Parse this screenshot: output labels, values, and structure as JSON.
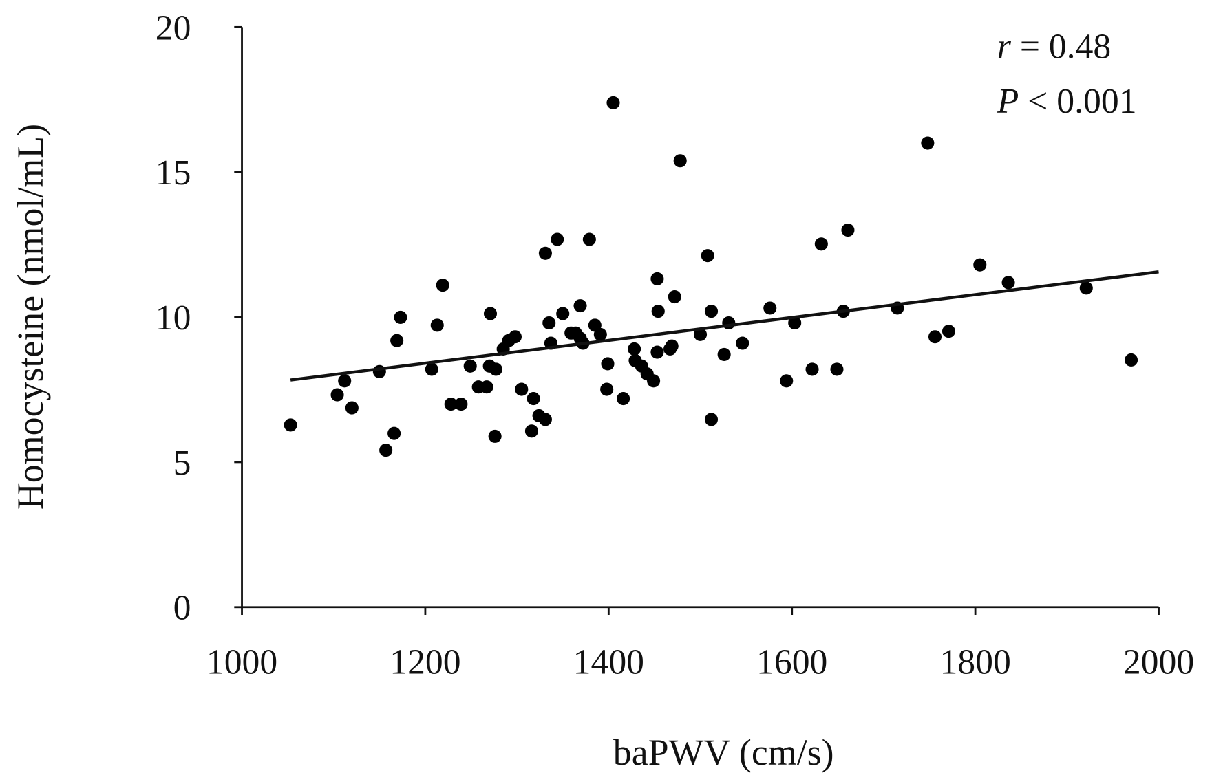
{
  "chart_data": {
    "type": "scatter",
    "title": "",
    "xlabel": "baPWV (cm/s)",
    "ylabel": "Homocysteine (nmol/mL)",
    "xlim": [
      1000,
      2000
    ],
    "ylim": [
      0,
      20
    ],
    "xticks": [
      "1000",
      "1200",
      "1400",
      "1600",
      "1800",
      "2000"
    ],
    "yticks": [
      "0",
      "5",
      "10",
      "15",
      "20"
    ],
    "grid": false,
    "annotations": {
      "r_symbol": "r",
      "r_value": "= 0.48",
      "p_symbol": "P",
      "p_value": "< 0.001"
    },
    "marker_color": "#000000",
    "points": [
      [
        1053,
        6.28
      ],
      [
        1104,
        7.32
      ],
      [
        1112,
        7.8
      ],
      [
        1120,
        6.87
      ],
      [
        1150,
        8.12
      ],
      [
        1157,
        5.41
      ],
      [
        1166,
        5.99
      ],
      [
        1169,
        9.19
      ],
      [
        1173,
        9.99
      ],
      [
        1207,
        8.2
      ],
      [
        1213,
        9.72
      ],
      [
        1219,
        11.1
      ],
      [
        1228,
        7.0
      ],
      [
        1239,
        7.0
      ],
      [
        1249,
        8.31
      ],
      [
        1258,
        7.59
      ],
      [
        1267,
        7.59
      ],
      [
        1270,
        8.31
      ],
      [
        1271,
        10.12
      ],
      [
        1277,
        8.2
      ],
      [
        1276,
        5.89
      ],
      [
        1285,
        8.9
      ],
      [
        1291,
        9.19
      ],
      [
        1298,
        9.32
      ],
      [
        1305,
        7.51
      ],
      [
        1318,
        7.19
      ],
      [
        1316,
        6.07
      ],
      [
        1324,
        6.6
      ],
      [
        1331,
        6.47
      ],
      [
        1331,
        12.2
      ],
      [
        1335,
        9.8
      ],
      [
        1337,
        9.1
      ],
      [
        1344,
        12.68
      ],
      [
        1350,
        10.12
      ],
      [
        1359,
        9.45
      ],
      [
        1364,
        9.45
      ],
      [
        1369,
        9.27
      ],
      [
        1369,
        10.39
      ],
      [
        1372,
        9.1
      ],
      [
        1379,
        12.68
      ],
      [
        1385,
        9.72
      ],
      [
        1391,
        9.4
      ],
      [
        1399,
        8.39
      ],
      [
        1398,
        7.51
      ],
      [
        1405,
        17.39
      ],
      [
        1416,
        7.19
      ],
      [
        1428,
        8.9
      ],
      [
        1429,
        8.5
      ],
      [
        1436,
        8.31
      ],
      [
        1442,
        8.04
      ],
      [
        1449,
        7.8
      ],
      [
        1453,
        8.79
      ],
      [
        1453,
        11.32
      ],
      [
        1454,
        10.2
      ],
      [
        1467,
        8.9
      ],
      [
        1469,
        9.0
      ],
      [
        1472,
        10.7
      ],
      [
        1478,
        15.39
      ],
      [
        1500,
        9.4
      ],
      [
        1508,
        12.12
      ],
      [
        1512,
        10.2
      ],
      [
        1512,
        6.47
      ],
      [
        1526,
        8.71
      ],
      [
        1531,
        9.8
      ],
      [
        1546,
        9.1
      ],
      [
        1576,
        10.31
      ],
      [
        1594,
        7.8
      ],
      [
        1603,
        9.8
      ],
      [
        1622,
        8.2
      ],
      [
        1632,
        12.52
      ],
      [
        1649,
        8.2
      ],
      [
        1656,
        10.2
      ],
      [
        1661,
        13.0
      ],
      [
        1715,
        10.31
      ],
      [
        1748,
        16.0
      ],
      [
        1756,
        9.32
      ],
      [
        1771,
        9.51
      ],
      [
        1805,
        11.8
      ],
      [
        1836,
        11.19
      ],
      [
        1921,
        11.0
      ],
      [
        1970,
        8.52
      ]
    ],
    "trendline": {
      "x": [
        1053,
        2000
      ],
      "y": [
        7.83,
        11.56
      ]
    }
  }
}
